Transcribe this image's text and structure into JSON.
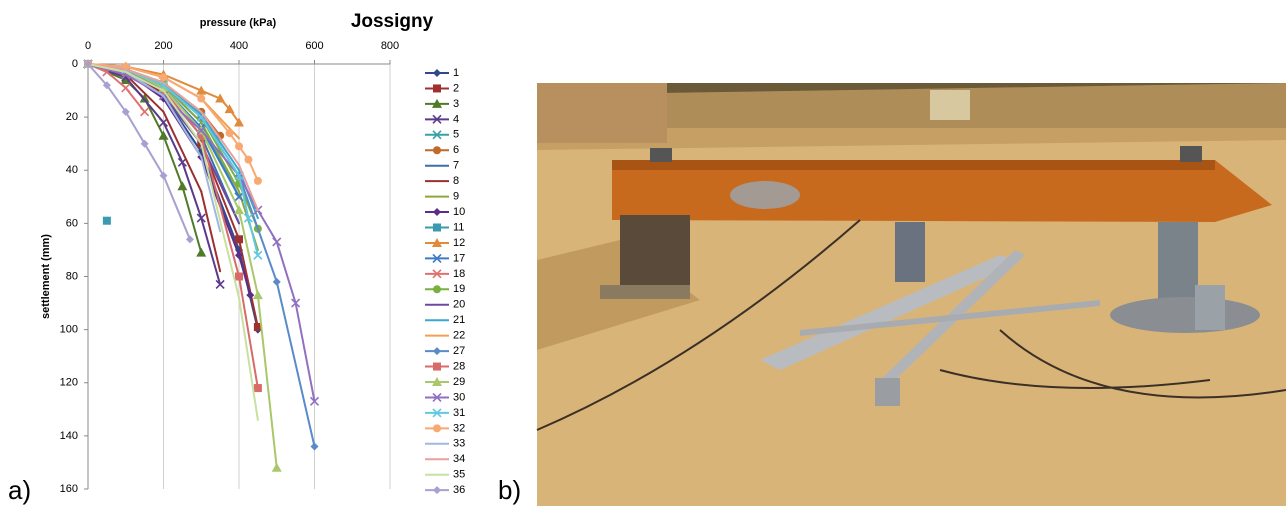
{
  "chart_data": {
    "type": "line",
    "title": "Jossigny",
    "x_label": "pressure (kPa)",
    "y_label": "settlement (mm)",
    "panel_labels": [
      "a)",
      "b)"
    ],
    "xlim": [
      0,
      800
    ],
    "xticks": [
      0,
      200,
      400,
      600,
      800
    ],
    "ylim": [
      0,
      160
    ],
    "yticks": [
      0,
      20,
      40,
      60,
      80,
      100,
      120,
      140,
      160
    ],
    "y_inverted": true,
    "x_axis_position": "top",
    "grid": "x",
    "legend": "right",
    "series": [
      {
        "name": "1",
        "color": "#2e4a8c",
        "marker": "diamond",
        "x": [
          0,
          100,
          200,
          300,
          400,
          450
        ],
        "values": [
          0,
          3,
          12,
          33,
          70,
          100
        ]
      },
      {
        "name": "2",
        "color": "#a03030",
        "marker": "square",
        "x": [
          0,
          100,
          200,
          300,
          400,
          450
        ],
        "values": [
          0,
          3,
          11,
          30,
          66,
          99
        ]
      },
      {
        "name": "3",
        "color": "#4f7a28",
        "marker": "triangle",
        "x": [
          0,
          100,
          150,
          200,
          250,
          300
        ],
        "values": [
          0,
          6,
          13,
          27,
          46,
          71
        ]
      },
      {
        "name": "4",
        "color": "#5b3a8c",
        "marker": "x",
        "x": [
          0,
          100,
          200,
          250,
          300,
          350
        ],
        "values": [
          0,
          5,
          22,
          37,
          58,
          83
        ]
      },
      {
        "name": "5",
        "color": "#3aa0a8",
        "marker": "x",
        "x": [
          0,
          100,
          200,
          300,
          400
        ],
        "values": [
          0,
          2,
          8,
          22,
          50
        ]
      },
      {
        "name": "6",
        "color": "#c06a28",
        "marker": "circle",
        "x": [
          0,
          100,
          200,
          300,
          350
        ],
        "values": [
          0,
          2,
          7,
          18,
          27
        ]
      },
      {
        "name": "7",
        "color": "#3c6ea8",
        "marker": "none",
        "x": [
          0,
          100,
          200,
          300,
          400
        ],
        "values": [
          0,
          2,
          10,
          27,
          60
        ]
      },
      {
        "name": "8",
        "color": "#9a3030",
        "marker": "none",
        "x": [
          0,
          100,
          200,
          300,
          350
        ],
        "values": [
          0,
          4,
          18,
          48,
          78
        ]
      },
      {
        "name": "9",
        "color": "#8aa83c",
        "marker": "none",
        "x": [
          0,
          100,
          200,
          300,
          400,
          450
        ],
        "values": [
          0,
          2,
          8,
          22,
          48,
          70
        ]
      },
      {
        "name": "10",
        "color": "#5a2e8a",
        "marker": "diamond",
        "x": [
          0,
          100,
          200,
          300,
          400,
          430
        ],
        "values": [
          0,
          3,
          13,
          35,
          72,
          87
        ]
      },
      {
        "name": "11",
        "color": "#3a9ab0",
        "marker": "square",
        "x": [
          50
        ],
        "values": [
          59
        ]
      },
      {
        "name": "12",
        "color": "#e08a3c",
        "marker": "triangle",
        "x": [
          0,
          100,
          200,
          300,
          350,
          375,
          400
        ],
        "values": [
          0,
          1,
          4,
          10,
          13,
          17,
          22
        ]
      },
      {
        "name": "17",
        "color": "#3c7ac8",
        "marker": "x",
        "x": [
          0,
          100,
          200,
          300,
          400
        ],
        "values": [
          0,
          2,
          9,
          24,
          50
        ]
      },
      {
        "name": "18",
        "color": "#e07070",
        "marker": "x",
        "x": [
          0,
          50,
          100,
          150
        ],
        "values": [
          0,
          3,
          9,
          18
        ]
      },
      {
        "name": "19",
        "color": "#7ab040",
        "marker": "circle",
        "x": [
          0,
          100,
          200,
          300,
          400,
          450
        ],
        "values": [
          0,
          2,
          7,
          20,
          45,
          62
        ]
      },
      {
        "name": "20",
        "color": "#6a4aa0",
        "marker": "none",
        "x": [
          0,
          100,
          200,
          300,
          400
        ],
        "values": [
          0,
          3,
          12,
          30,
          60
        ]
      },
      {
        "name": "21",
        "color": "#3aa8c8",
        "marker": "none",
        "x": [
          0,
          100,
          200,
          300,
          400,
          450
        ],
        "values": [
          0,
          2,
          7,
          19,
          40,
          58
        ]
      },
      {
        "name": "22",
        "color": "#f0a050",
        "marker": "none",
        "x": [
          0,
          100,
          200,
          300,
          400
        ],
        "values": [
          0,
          1,
          5,
          13,
          28
        ]
      },
      {
        "name": "27",
        "color": "#5a8ac8",
        "marker": "diamond",
        "x": [
          0,
          100,
          200,
          300,
          400,
          500,
          600
        ],
        "values": [
          0,
          2,
          8,
          20,
          42,
          82,
          144
        ]
      },
      {
        "name": "28",
        "color": "#d86a6a",
        "marker": "square",
        "x": [
          0,
          100,
          200,
          300,
          400,
          450
        ],
        "values": [
          0,
          3,
          10,
          27,
          80,
          122
        ]
      },
      {
        "name": "29",
        "color": "#a8c86a",
        "marker": "triangle",
        "x": [
          0,
          100,
          200,
          300,
          400,
          450,
          500
        ],
        "values": [
          0,
          2,
          9,
          25,
          55,
          87,
          152
        ]
      },
      {
        "name": "30",
        "color": "#9070c0",
        "marker": "x",
        "x": [
          0,
          100,
          200,
          300,
          400,
          450,
          500,
          550,
          600
        ],
        "values": [
          0,
          4,
          12,
          25,
          42,
          55,
          67,
          90,
          127
        ]
      },
      {
        "name": "31",
        "color": "#60c8e0",
        "marker": "x",
        "x": [
          0,
          100,
          200,
          300,
          400,
          425,
          450
        ],
        "values": [
          0,
          2,
          8,
          20,
          42,
          58,
          72
        ]
      },
      {
        "name": "32",
        "color": "#f8a870",
        "marker": "circle",
        "x": [
          0,
          100,
          200,
          300,
          375,
          400,
          425,
          450
        ],
        "values": [
          0,
          1,
          5,
          13,
          26,
          31,
          36,
          44
        ]
      },
      {
        "name": "33",
        "color": "#a0b8e0",
        "marker": "none",
        "x": [
          0,
          100,
          200,
          300,
          350
        ],
        "values": [
          0,
          3,
          12,
          35,
          63
        ]
      },
      {
        "name": "34",
        "color": "#e8a0a0",
        "marker": "none",
        "x": [
          0,
          100,
          200,
          300,
          400,
          450
        ],
        "values": [
          0,
          2,
          7,
          18,
          38,
          55
        ]
      },
      {
        "name": "35",
        "color": "#c8e0a0",
        "marker": "none",
        "x": [
          0,
          100,
          200,
          300,
          400,
          450
        ],
        "values": [
          0,
          3,
          10,
          30,
          88,
          134
        ]
      },
      {
        "name": "36",
        "color": "#a8a0d0",
        "marker": "diamond",
        "x": [
          0,
          50,
          100,
          150,
          200,
          270
        ],
        "values": [
          0,
          8,
          18,
          30,
          42,
          66
        ]
      }
    ]
  }
}
